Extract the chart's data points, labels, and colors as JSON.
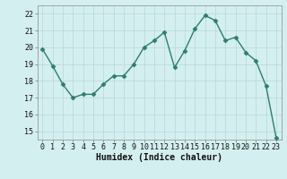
{
  "x": [
    0,
    1,
    2,
    3,
    4,
    5,
    6,
    7,
    8,
    9,
    10,
    11,
    12,
    13,
    14,
    15,
    16,
    17,
    18,
    19,
    20,
    21,
    22,
    23
  ],
  "y": [
    19.9,
    18.9,
    17.8,
    17.0,
    17.2,
    17.2,
    17.8,
    18.3,
    18.3,
    19.0,
    20.0,
    20.4,
    20.9,
    18.8,
    19.8,
    21.1,
    21.9,
    21.6,
    20.4,
    20.6,
    19.7,
    19.2,
    17.7,
    14.6
  ],
  "line_color": "#2e7d6e",
  "marker": "D",
  "marker_size": 2.5,
  "bg_color": "#d4efef",
  "grid_color": "#b8d8d8",
  "xlabel": "Humidex (Indice chaleur)",
  "ylim": [
    14.5,
    22.5
  ],
  "xlim": [
    -0.5,
    23.5
  ],
  "yticks": [
    15,
    16,
    17,
    18,
    19,
    20,
    21,
    22
  ],
  "xticks": [
    0,
    1,
    2,
    3,
    4,
    5,
    6,
    7,
    8,
    9,
    10,
    11,
    12,
    13,
    14,
    15,
    16,
    17,
    18,
    19,
    20,
    21,
    22,
    23
  ],
  "tick_fontsize": 6,
  "xlabel_fontsize": 7
}
